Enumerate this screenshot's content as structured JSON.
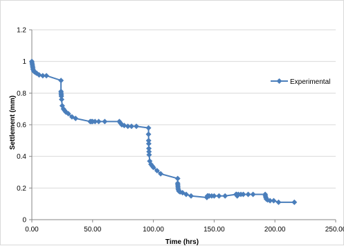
{
  "chart_data": {
    "type": "scatter",
    "title": "",
    "xlabel": "Time (hrs)",
    "ylabel": "Settlement (mm)",
    "xlim": [
      0,
      250
    ],
    "ylim": [
      0,
      1.2
    ],
    "x_ticks": [
      "0.00",
      "50.00",
      "100.00",
      "150.00",
      "200.00",
      "250.00"
    ],
    "y_ticks": [
      "0",
      "0.2",
      "0.4",
      "0.6",
      "0.8",
      "1",
      "1.2"
    ],
    "grid": "horizontal",
    "legend_position": "right",
    "color": "#4a7ebb",
    "marker": "diamond",
    "series": [
      {
        "name": "Experimental",
        "points": [
          [
            0.0,
            1.0
          ],
          [
            0.2,
            0.99
          ],
          [
            0.4,
            0.98
          ],
          [
            0.6,
            0.97
          ],
          [
            0.8,
            0.96
          ],
          [
            1.0,
            0.95
          ],
          [
            1.5,
            0.94
          ],
          [
            2.0,
            0.935
          ],
          [
            3.0,
            0.93
          ],
          [
            4.0,
            0.925
          ],
          [
            6.0,
            0.915
          ],
          [
            9.0,
            0.91
          ],
          [
            12.0,
            0.91
          ],
          [
            24.0,
            0.88
          ],
          [
            24.0,
            0.81
          ],
          [
            24.1,
            0.8
          ],
          [
            24.2,
            0.79
          ],
          [
            24.3,
            0.78
          ],
          [
            24.5,
            0.76
          ],
          [
            25.0,
            0.72
          ],
          [
            26.0,
            0.7
          ],
          [
            27.0,
            0.69
          ],
          [
            28.0,
            0.68
          ],
          [
            30.0,
            0.67
          ],
          [
            33.0,
            0.65
          ],
          [
            36.0,
            0.64
          ],
          [
            48.0,
            0.62
          ],
          [
            49.0,
            0.62
          ],
          [
            50.0,
            0.62
          ],
          [
            52.0,
            0.62
          ],
          [
            55.0,
            0.62
          ],
          [
            60.0,
            0.62
          ],
          [
            72.0,
            0.62
          ],
          [
            73.0,
            0.61
          ],
          [
            74.0,
            0.6
          ],
          [
            76.0,
            0.595
          ],
          [
            79.0,
            0.59
          ],
          [
            82.0,
            0.59
          ],
          [
            86.0,
            0.59
          ],
          [
            96.0,
            0.58
          ],
          [
            96.0,
            0.54
          ],
          [
            96.1,
            0.5
          ],
          [
            96.2,
            0.48
          ],
          [
            96.3,
            0.45
          ],
          [
            96.4,
            0.43
          ],
          [
            96.5,
            0.41
          ],
          [
            97.0,
            0.37
          ],
          [
            98.0,
            0.35
          ],
          [
            99.0,
            0.34
          ],
          [
            100.0,
            0.33
          ],
          [
            103.0,
            0.31
          ],
          [
            106.0,
            0.29
          ],
          [
            120.0,
            0.26
          ],
          [
            120.0,
            0.23
          ],
          [
            120.1,
            0.22
          ],
          [
            120.2,
            0.21
          ],
          [
            120.3,
            0.2
          ],
          [
            120.5,
            0.19
          ],
          [
            121.0,
            0.18
          ],
          [
            122.0,
            0.175
          ],
          [
            124.0,
            0.17
          ],
          [
            127.0,
            0.16
          ],
          [
            131.0,
            0.15
          ],
          [
            144.0,
            0.14
          ],
          [
            144.5,
            0.15
          ],
          [
            145.0,
            0.15
          ],
          [
            146.0,
            0.15
          ],
          [
            148.0,
            0.15
          ],
          [
            150.0,
            0.15
          ],
          [
            154.0,
            0.15
          ],
          [
            159.0,
            0.15
          ],
          [
            168.0,
            0.16
          ],
          [
            168.5,
            0.16
          ],
          [
            169.0,
            0.15
          ],
          [
            170.0,
            0.16
          ],
          [
            172.0,
            0.16
          ],
          [
            174.0,
            0.16
          ],
          [
            178.0,
            0.16
          ],
          [
            182.0,
            0.16
          ],
          [
            192.0,
            0.16
          ],
          [
            192.2,
            0.15
          ],
          [
            192.5,
            0.14
          ],
          [
            193.0,
            0.13
          ],
          [
            194.0,
            0.125
          ],
          [
            196.0,
            0.12
          ],
          [
            199.0,
            0.12
          ],
          [
            203.0,
            0.11
          ],
          [
            216.0,
            0.11
          ]
        ]
      }
    ]
  }
}
